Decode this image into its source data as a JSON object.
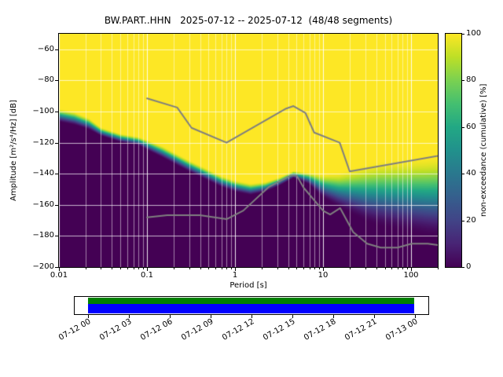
{
  "title": "BW.PART..HHN   2025-07-12 -- 2025-07-12  (48/48 segments)",
  "axes": {
    "xlabel": "Period [s]",
    "ylabel": "Amplitude [m²/s⁴/Hz] [dB]",
    "x_ticks": [
      {
        "value": 0.01,
        "label": "0.01"
      },
      {
        "value": 0.1,
        "label": "0.1"
      },
      {
        "value": 1,
        "label": "1"
      },
      {
        "value": 10,
        "label": "10"
      },
      {
        "value": 100,
        "label": "100"
      }
    ],
    "y_ticks": [
      {
        "value": -60,
        "label": "−60"
      },
      {
        "value": -80,
        "label": "−80"
      },
      {
        "value": -100,
        "label": "−100"
      },
      {
        "value": -120,
        "label": "−120"
      },
      {
        "value": -140,
        "label": "−140"
      },
      {
        "value": -160,
        "label": "−160"
      },
      {
        "value": -180,
        "label": "−180"
      },
      {
        "value": -200,
        "label": "−200"
      }
    ]
  },
  "colorbar": {
    "label": "non-exceedance (cumulative) [%]",
    "ticks": [
      {
        "value": 0,
        "label": "0"
      },
      {
        "value": 20,
        "label": "20"
      },
      {
        "value": 40,
        "label": "40"
      },
      {
        "value": 60,
        "label": "60"
      },
      {
        "value": 80,
        "label": "80"
      },
      {
        "value": 100,
        "label": "100"
      }
    ],
    "colormap": [
      [
        0.0,
        "#440154"
      ],
      [
        0.1,
        "#482475"
      ],
      [
        0.2,
        "#414487"
      ],
      [
        0.3,
        "#355f8d"
      ],
      [
        0.4,
        "#2a788e"
      ],
      [
        0.5,
        "#21918c"
      ],
      [
        0.6,
        "#22a884"
      ],
      [
        0.7,
        "#44bf70"
      ],
      [
        0.8,
        "#7ad151"
      ],
      [
        0.9,
        "#bddf26"
      ],
      [
        1.0,
        "#fde725"
      ]
    ]
  },
  "chart_data": {
    "type": "heatmap",
    "subtype": "ppsd-cumulative-non-exceedance",
    "title": "BW.PART..HHN   2025-07-12 -- 2025-07-12  (48/48 segments)",
    "station_id": "BW.PART..HHN",
    "date_start": "2025-07-12",
    "date_end": "2025-07-12",
    "segments_used": 48,
    "segments_total": 48,
    "xlabel": "Period [s]",
    "ylabel": "Amplitude [m^2/s^4/Hz] [dB]",
    "xscale": "log",
    "xlim": [
      0.01,
      200
    ],
    "ylim": [
      -200,
      -50
    ],
    "grid": true,
    "colormap": "viridis",
    "colorbar_label": "non-exceedance (cumulative) [%]",
    "colorbar_range": [
      0,
      100
    ],
    "envelope": {
      "note": "per period: dB where cumulative non-exceedance reaches 0% (db_low) and 100% (db_high); colors interpolate between these levels",
      "periods": [
        0.01,
        0.015,
        0.022,
        0.03,
        0.05,
        0.08,
        0.1,
        0.15,
        0.22,
        0.3,
        0.5,
        0.7,
        1.0,
        1.5,
        2.2,
        3.2,
        4.6,
        6.8,
        10,
        15,
        22,
        32,
        46,
        68,
        100,
        150,
        200
      ],
      "db_high": [
        -98,
        -100,
        -104,
        -110,
        -114,
        -116,
        -118,
        -122,
        -127,
        -131,
        -137,
        -141,
        -144,
        -146,
        -145,
        -142,
        -138,
        -139,
        -140,
        -139,
        -136,
        -133,
        -131,
        -130,
        -129,
        -128,
        -127
      ],
      "db_low": [
        -107,
        -109,
        -112,
        -116,
        -120,
        -122,
        -125,
        -130,
        -135,
        -139,
        -145,
        -149,
        -152,
        -154,
        -152,
        -148,
        -143,
        -147,
        -156,
        -162,
        -167,
        -172,
        -175,
        -177,
        -179,
        -181,
        -182
      ]
    },
    "noise_models": {
      "color": "#7f7f7f",
      "nhnm": {
        "periods": [
          0.1,
          0.22,
          0.32,
          0.8,
          3.8,
          4.6,
          6.3,
          7.9,
          15.4,
          20.0,
          354.8
        ],
        "db": [
          -91.5,
          -97.4,
          -110.5,
          -120.0,
          -98.1,
          -96.5,
          -101.0,
          -113.5,
          -120.0,
          -138.5,
          -126.0
        ]
      },
      "nlnm": {
        "periods": [
          0.1,
          0.17,
          0.4,
          0.8,
          1.24,
          2.4,
          4.3,
          5.0,
          6.0,
          10.0,
          12.0,
          15.6,
          21.9,
          31.6,
          45.0,
          70.0,
          101.0,
          154.0,
          328.0
        ],
        "db": [
          -168.0,
          -166.7,
          -166.7,
          -169.2,
          -163.7,
          -148.6,
          -141.1,
          -141.1,
          -149.0,
          -163.8,
          -166.2,
          -162.1,
          -177.5,
          -185.0,
          -187.5,
          -187.5,
          -185.0,
          -185.0,
          -187.5
        ]
      }
    }
  },
  "timeline": {
    "tick_hours": [
      0,
      3,
      6,
      9,
      12,
      15,
      18,
      21,
      24
    ],
    "tick_labels": [
      "07-12 00",
      "07-12 03",
      "07-12 06",
      "07-12 09",
      "07-12 12",
      "07-12 15",
      "07-12 18",
      "07-12 21",
      "07-13 00"
    ],
    "coverage_start_hour": 0,
    "coverage_end_hour": 24,
    "segments_color": "#008000",
    "data_color": "#0000ff"
  }
}
